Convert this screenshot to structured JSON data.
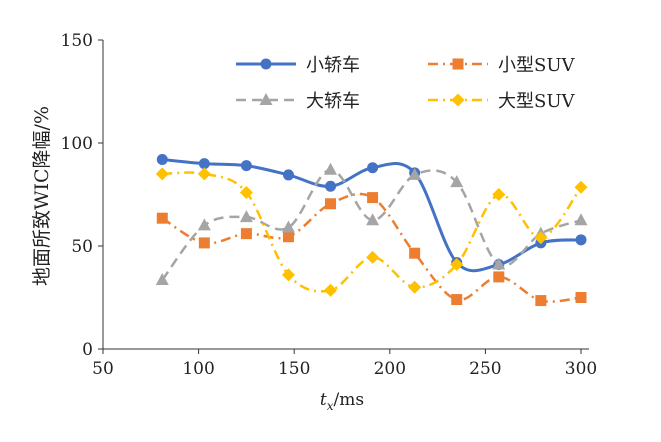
{
  "chart_data": {
    "type": "line",
    "title": "",
    "xlabel": "t",
    "xlabel_sub": "x",
    "xlabel_unit": "/ms",
    "ylabel": "地面所致WIC降幅/%",
    "xlim": [
      50,
      300
    ],
    "ylim": [
      0,
      150
    ],
    "xticks": [
      50,
      100,
      150,
      200,
      250,
      300
    ],
    "yticks": [
      0,
      50,
      100,
      150
    ],
    "grid": false,
    "legend_placement": "top",
    "x": [
      81,
      103,
      125,
      147,
      169,
      191,
      213,
      235,
      257,
      279,
      300
    ],
    "series": [
      {
        "name": "小轿车",
        "color": "#4472C4",
        "marker": "circle",
        "dash": "solid",
        "values": [
          92,
          90,
          89,
          84.5,
          79,
          88,
          85.5,
          42,
          41,
          51.5,
          53
        ]
      },
      {
        "name": "小型SUV",
        "color": "#ED7D31",
        "marker": "square",
        "dash": "dashdot",
        "values": [
          63.5,
          51.5,
          56,
          54.5,
          70.5,
          73.5,
          46.5,
          24,
          35,
          23.5,
          25
        ]
      },
      {
        "name": "大轿车",
        "color": "#A5A5A5",
        "marker": "triangle",
        "dash": "dash",
        "values": [
          33.5,
          60,
          64,
          59,
          87,
          62.5,
          84.5,
          81,
          41,
          56,
          62.5
        ]
      },
      {
        "name": "大型SUV",
        "color": "#FFC000",
        "marker": "diamond",
        "dash": "dashdot",
        "values": [
          85,
          85,
          76,
          36,
          28.5,
          44.5,
          30,
          41,
          75,
          54,
          78.5
        ]
      }
    ]
  }
}
